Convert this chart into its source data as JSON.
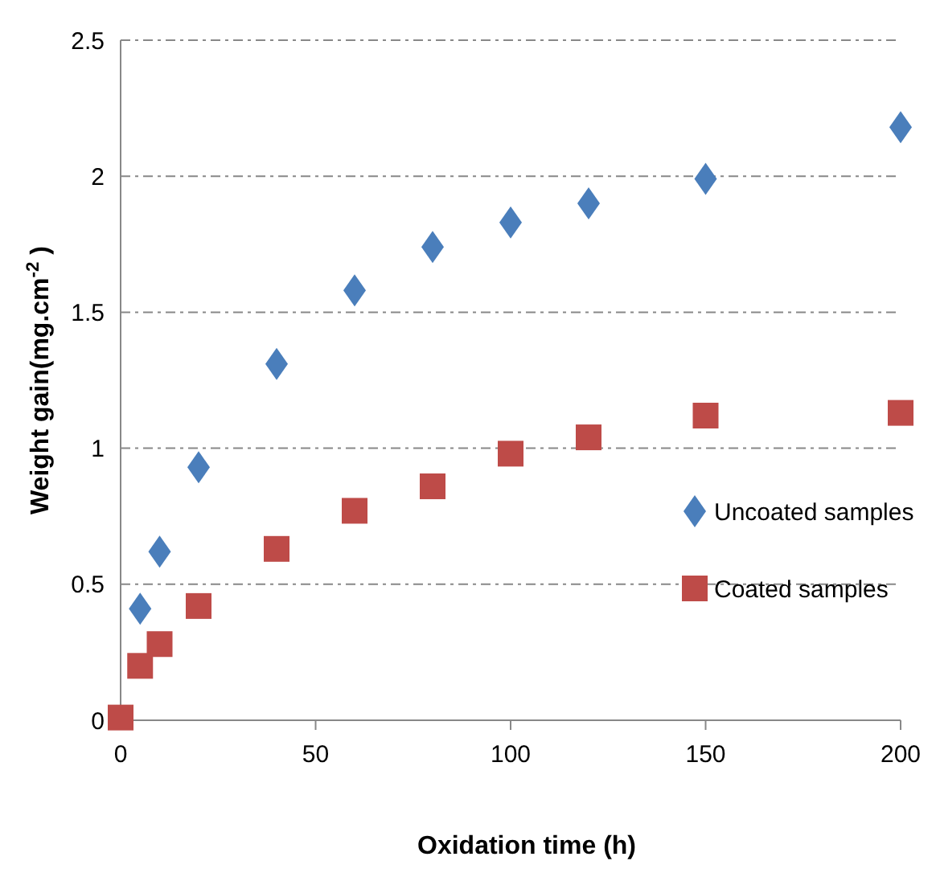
{
  "chart_data": {
    "type": "scatter",
    "xlabel": "Oxidation time (h)",
    "ylabel": "Weight gain(mg.cm$^{-2}$ )",
    "x": [
      5,
      10,
      20,
      40,
      60,
      80,
      100,
      120,
      150,
      200
    ],
    "series": [
      {
        "name": "Uncoated samples",
        "color": "#4a7ebb",
        "marker": "diamond",
        "values": [
          0.41,
          0.62,
          0.93,
          1.31,
          1.58,
          1.74,
          1.83,
          1.9,
          1.99,
          2.18
        ]
      },
      {
        "name": "Coated samples",
        "color": "#be4b48",
        "marker": "square",
        "x": [
          0,
          5,
          10,
          20,
          40,
          60,
          80,
          100,
          120,
          150,
          200
        ],
        "values": [
          0.01,
          0.2,
          0.28,
          0.42,
          0.63,
          0.77,
          0.86,
          0.98,
          1.04,
          1.12,
          1.13
        ]
      }
    ],
    "xlim": [
      0,
      200
    ],
    "xticks": [
      0,
      50,
      100,
      150,
      200
    ],
    "ylim": [
      0,
      2.5
    ],
    "yticks": [
      0,
      0.5,
      1,
      1.5,
      2,
      2.5
    ],
    "grid": "y",
    "legend": "right"
  }
}
